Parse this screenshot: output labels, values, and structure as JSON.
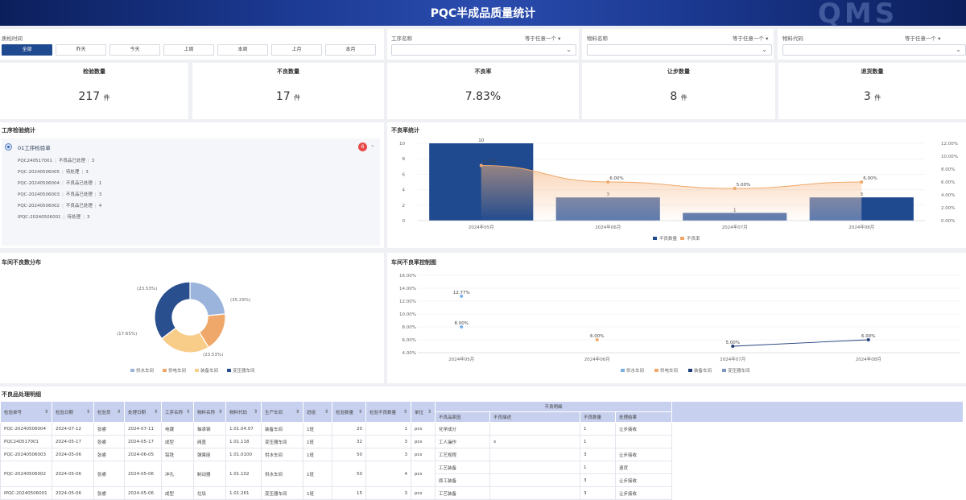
{
  "header": {
    "title": "PQC半成品质量统计",
    "logo": "QMS"
  },
  "filters": {
    "time_label": "质检时间",
    "time_buttons": [
      "全部",
      "昨天",
      "今天",
      "上周",
      "本周",
      "上月",
      "本月"
    ],
    "process_label": "工序名称",
    "process_op": "等于任意一个",
    "material_name_label": "物料名称",
    "material_name_op": "等于任意一个",
    "material_code_label": "物料代码",
    "material_code_op": "等于任意一个"
  },
  "kpis": [
    {
      "title": "检验数量",
      "value": "217",
      "unit": "件"
    },
    {
      "title": "不良数量",
      "value": "17",
      "unit": "件"
    },
    {
      "title": "不良率",
      "value": "7.83%",
      "unit": ""
    },
    {
      "title": "让步数量",
      "value": "8",
      "unit": "件"
    },
    {
      "title": "退货数量",
      "value": "3",
      "unit": "件"
    }
  ],
  "process_panel": {
    "title": "工序检验统计",
    "node": "01工序检验单",
    "badge": "6",
    "items": [
      {
        "code": "PQC240517001",
        "status": "不良品已处理",
        "count": "3"
      },
      {
        "code": "PQC-20240506005",
        "status": "待处理",
        "count": "3"
      },
      {
        "code": "PQC-20240506004",
        "status": "不良品已处理",
        "count": "1"
      },
      {
        "code": "PQC-20240506003",
        "status": "不良品已处理",
        "count": "3"
      },
      {
        "code": "PQC-20240506002",
        "status": "不良品已处理",
        "count": "4"
      },
      {
        "code": "IPQC-20240506001",
        "status": "待处理",
        "count": "3"
      }
    ]
  },
  "charts": {
    "defect_rate_title": "不良率统计",
    "workshop_dist_title": "车间不良数分布",
    "workshop_control_title": "车间不良率控制图"
  },
  "chart_data": [
    {
      "type": "bar",
      "categories": [
        "2024年05月",
        "2024年06月",
        "2024年07月",
        "2024年08月"
      ],
      "series": [
        {
          "name": "不良数量",
          "values": [
            10,
            3,
            1,
            3
          ],
          "labels": [
            "10",
            "3",
            "1",
            "3"
          ]
        },
        {
          "name": "不良率",
          "type": "line",
          "values": [
            8.57,
            6.0,
            5.0,
            6.0
          ],
          "labels": [
            "8.57%",
            "6.00%",
            "5.00%",
            "6.00%"
          ]
        }
      ],
      "y_ticks": [
        "0",
        "2",
        "4",
        "6",
        "8",
        "10"
      ],
      "y2_ticks": [
        "0.00%",
        "2.00%",
        "4.00%",
        "6.00%",
        "8.00%",
        "10.00%",
        "12.00%"
      ],
      "ylim": [
        0,
        10
      ],
      "y2lim": [
        0,
        12
      ]
    },
    {
      "type": "pie",
      "labels": [
        "供水车间",
        "供电车间",
        "装备车间",
        "变压器车间"
      ],
      "values": [
        23.53,
        17.65,
        23.53,
        35.29
      ],
      "value_labels": [
        "(23.53%)",
        "(17.65%)",
        "(23.53%)",
        "(35.29%)"
      ],
      "colors": [
        "#9ab4dc",
        "#f0a86a",
        "#f8cd8a",
        "#294f8e"
      ]
    },
    {
      "type": "line",
      "categories": [
        "2024年05月",
        "2024年06月",
        "2024年07月",
        "2024年08月"
      ],
      "y_ticks": [
        "4.00%",
        "6.00%",
        "8.00%",
        "10.00%",
        "12.00%",
        "14.00%",
        "16.00%"
      ],
      "ylim": [
        4,
        16
      ],
      "series": [
        {
          "name": "供水车间",
          "color": "#7ab0e6",
          "points": [
            {
              "x": 0,
              "y": 12.77,
              "label": "12.77%"
            },
            {
              "x": 0,
              "y": 8.0,
              "label": "8.00%"
            }
          ]
        },
        {
          "name": "供电车间",
          "color": "#f0a86a",
          "points": [
            {
              "x": 1,
              "y": 6.0,
              "label": "6.00%"
            }
          ]
        },
        {
          "name": "装备车间",
          "color": "#1f3e7a",
          "points": [
            {
              "x": 2,
              "y": 5.0,
              "label": "5.00%"
            },
            {
              "x": 3,
              "y": 6.0,
              "label": "6.00%"
            }
          ]
        },
        {
          "name": "变压器车间",
          "color": "#7f93bd",
          "points": []
        }
      ]
    }
  ],
  "table": {
    "title": "不良品处理明细",
    "headers": [
      "检验单号",
      "检验日期",
      "检验员",
      "处理日期",
      "工序名称",
      "物料名称",
      "物料代码",
      "生产车间",
      "班组",
      "检验数量",
      "检验不良数量",
      "单位"
    ],
    "detail_group": "不良明细",
    "detail_headers": [
      "不良品原因",
      "不良描述",
      "不良数量",
      "处理结果"
    ],
    "rows": [
      {
        "cells": [
          "PQC-20240506004",
          "2024-07-12",
          "张睿",
          "2024-07-11",
          "电镀",
          "轴承钢",
          "1.01.04.07",
          "装备车间",
          "1班",
          "20",
          "1",
          "pcs"
        ],
        "details": [
          [
            "化学成分",
            "",
            "1",
            "让步接收"
          ]
        ]
      },
      {
        "cells": [
          "PQC240517001",
          "2024-05-17",
          "张睿",
          "2024-05-17",
          "成型",
          "阀盖",
          "1.01.118",
          "变压器车间",
          "1班",
          "32",
          "3",
          "pcs"
        ],
        "details": [
          [
            "工人操作",
            "x",
            "1",
            ""
          ]
        ]
      },
      {
        "cells": [
          "PQC-20240506003",
          "2024-05-06",
          "张睿",
          "2024-06-05",
          "铝铣",
          "弹簧座",
          "1.01.0100",
          "供水车间",
          "1班",
          "50",
          "3",
          "pcs"
        ],
        "details": [
          [
            "工艺规程",
            "",
            "3",
            "让步接收"
          ]
        ]
      },
      {
        "cells": [
          "PQC-20240506002",
          "2024-05-06",
          "张睿",
          "2024-05-06",
          "冲孔",
          "制动器",
          "1.01.102",
          "供水车间",
          "1班",
          "50",
          "4",
          "pcs"
        ],
        "details": [
          [
            "工艺装备",
            "",
            "1",
            "退货"
          ],
          [
            "原工装备",
            "",
            "3",
            "让步接收"
          ]
        ]
      },
      {
        "cells": [
          "IPQC-20240506001",
          "2024-05-06",
          "张睿",
          "2024-05-06",
          "成型",
          "垃圾",
          "1.01.261",
          "变压器车间",
          "1班",
          "15",
          "3",
          "pcs"
        ],
        "details": [
          [
            "工艺装备",
            "",
            "3",
            "让步接收"
          ]
        ]
      }
    ]
  }
}
